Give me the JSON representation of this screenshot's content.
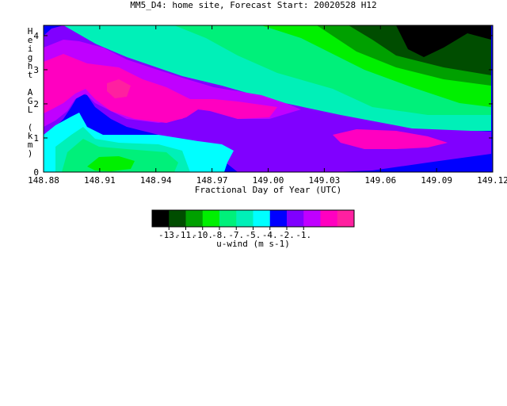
{
  "chart_data": {
    "type": "heatmap",
    "title": "MM5_D4: home site,  Forecast Start: 20020528 H12",
    "xlabel": "Fractional Day of Year (UTC)",
    "ylabel": "Height AGL (km)",
    "x_ticks": [
      "148.88",
      "148.91",
      "148.94",
      "148.97",
      "149.00",
      "149.03",
      "149.06",
      "149.09",
      "149.12"
    ],
    "y_ticks": [
      "0",
      "1",
      "2",
      "3",
      "4"
    ],
    "xlim": [
      148.88,
      149.12
    ],
    "ylim": [
      0,
      4.3
    ],
    "colorbar": {
      "label": "u-wind (m s-1)",
      "tick_labels": [
        "-13.",
        "-11.",
        "-10.",
        "-8.",
        "-7.",
        "-5.",
        "-4.",
        "-2.",
        "-1."
      ],
      "colors": [
        "#000000",
        "#004d00",
        "#00a000",
        "#00f000",
        "#00f07a",
        "#00f0b8",
        "#00ffff",
        "#0000ff",
        "#8000ff",
        "#c000ff",
        "#ff00c0",
        "#ff20a0"
      ]
    }
  }
}
